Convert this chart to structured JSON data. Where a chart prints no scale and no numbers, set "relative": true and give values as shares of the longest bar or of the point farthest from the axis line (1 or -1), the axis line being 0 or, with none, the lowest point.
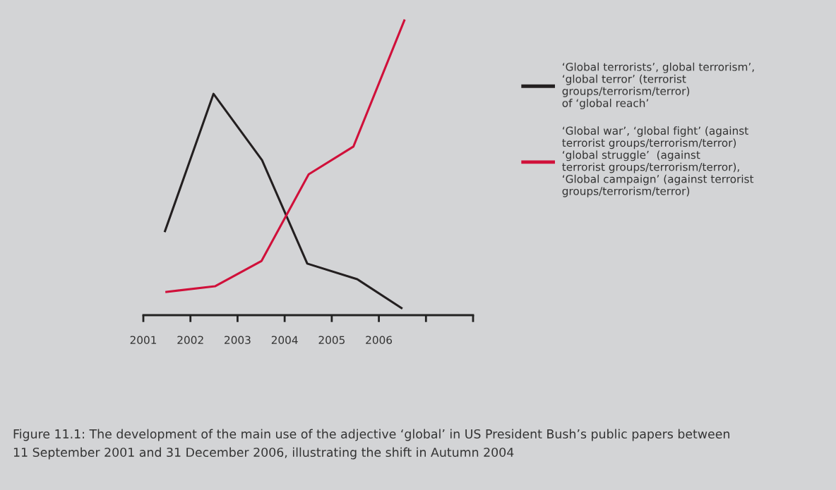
{
  "chart_data": {
    "type": "line",
    "relative": true,
    "xlim": [
      2001,
      2008
    ],
    "xticks": [
      2001,
      2002,
      2003,
      2004,
      2005,
      2006,
      {
        "value": 2007,
        "label": null
      },
      {
        "value": 2008,
        "label": null
      }
    ],
    "tick_labels": "x",
    "grid": false,
    "legend": "right",
    "marker": "none",
    "line_style": "solid",
    "series": [
      {
        "name": "‘Global terrorists’, global terrorism’,\n‘global terror’ (terrorist\ngroups/terrorism/terror)\nof ‘global reach’",
        "color": "#231f20",
        "x": [
          2001.46,
          2002.49,
          2003.52,
          2004.48,
          2005.54,
          2006.48
        ],
        "values": [
          0.285,
          0.751,
          0.526,
          0.175,
          0.122,
          0.024
        ]
      },
      {
        "name": "‘Global war’, ‘global fight’ (against\nterrorist groups/terrorism/terror)\n‘global struggle’  (against\nterrorist groups/terrorism/terror),\n‘Global campaign’ (against terrorist\ngroups/terrorism/terror)",
        "color": "#d0103a",
        "x": [
          2001.49,
          2002.52,
          2003.51,
          2004.51,
          2005.46,
          2006.54
        ],
        "values": [
          0.079,
          0.098,
          0.184,
          0.478,
          0.572,
          1.0
        ]
      }
    ],
    "annotations": [
      "Figure 11.1: The development of the main use of the adjective ‘global’ in US President Bush’s public papers between\n11 September 2001 and 31 December 2006, illustrating the shift in Autumn 2004"
    ]
  }
}
